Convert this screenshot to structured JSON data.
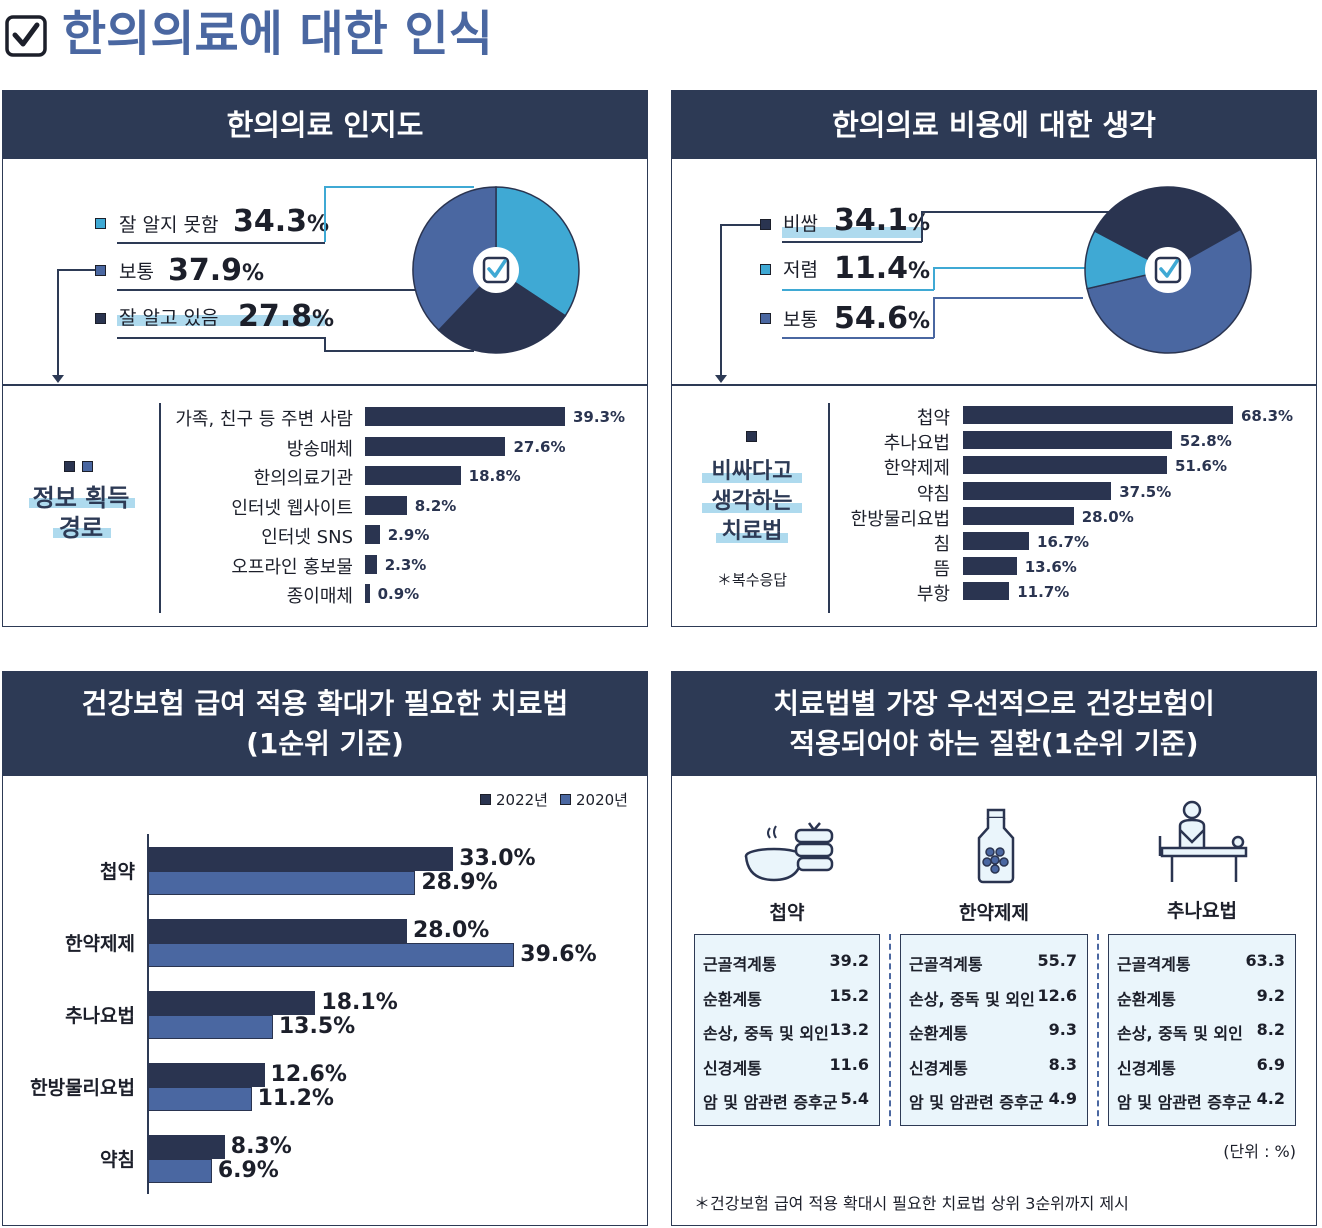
{
  "page": {
    "title": "한의의료에 대한 인식"
  },
  "panel1": {
    "title": "한의의료 인지도",
    "legend": [
      {
        "label": "잘 알지 못함",
        "value": "34.3",
        "unit": "%",
        "color": "#3fa9d4"
      },
      {
        "label": "보통",
        "value": "37.9",
        "unit": "%",
        "color": "#4a67a1"
      },
      {
        "label": "잘 알고 있음",
        "value": "27.8",
        "unit": "%",
        "color": "#2a3450"
      }
    ],
    "sub_title_line1": "정보 획득",
    "sub_title_line2": "경로"
  },
  "panel2": {
    "title": "한의의료 비용에 대한 생각",
    "legend": [
      {
        "label": "비쌈",
        "value": "34.1",
        "unit": "%",
        "color": "#2a3450"
      },
      {
        "label": "저렴",
        "value": "11.4",
        "unit": "%",
        "color": "#3fa9d4"
      },
      {
        "label": "보통",
        "value": "54.6",
        "unit": "%",
        "color": "#4a67a1"
      }
    ],
    "sub_title_line1": "비싸다고",
    "sub_title_line2": "생각하는",
    "sub_title_line3": "치료법",
    "sub_note": "＊복수응답"
  },
  "panel3": {
    "title_line1": "건강보험 급여 적용 확대가 필요한 치료법",
    "title_line2": "(1순위 기준)",
    "legend_2022": "2022년",
    "legend_2020": "2020년"
  },
  "panel4": {
    "title_line1": "치료법별 가장 우선적으로 건강보험이",
    "title_line2": "적용되어야 하는 질환(1순위 기준)",
    "unit_note": "(단위 : %)",
    "footnote": "＊건강보험 급여 적용 확대시 필요한 치료법 상위 3순위까지 제시",
    "columns": [
      {
        "name": "첩약",
        "icon": "herbal-bowl-icon",
        "rows": [
          [
            "근골격계통",
            "39.2"
          ],
          [
            "순환계통",
            "15.2"
          ],
          [
            "손상, 중독 및 외인",
            "13.2"
          ],
          [
            "신경계통",
            "11.6"
          ],
          [
            "암 및 암관련 증후군",
            "5.4"
          ]
        ]
      },
      {
        "name": "한약제제",
        "icon": "medicine-bottle-icon",
        "rows": [
          [
            "근골격계통",
            "55.7"
          ],
          [
            "손상, 중독 및 외인",
            "12.6"
          ],
          [
            "순환계통",
            "9.3"
          ],
          [
            "신경계통",
            "8.3"
          ],
          [
            "암 및 암관련 증후군",
            "4.9"
          ]
        ]
      },
      {
        "name": "추나요법",
        "icon": "chuna-therapy-icon",
        "rows": [
          [
            "근골격계통",
            "63.3"
          ],
          [
            "순환계통",
            "9.2"
          ],
          [
            "손상, 중독 및 외인",
            "8.2"
          ],
          [
            "신경계통",
            "6.9"
          ],
          [
            "암 및 암관련 증후군",
            "4.2"
          ]
        ]
      }
    ]
  },
  "colors": {
    "navy": "#2d3a55",
    "dark": "#2a3450",
    "mid": "#4a67a1",
    "light": "#3fa9d4",
    "highlight": "#aedaee"
  },
  "chart_data": [
    {
      "type": "pie",
      "title": "한의의료 인지도",
      "categories": [
        "잘 알지 못함",
        "보통",
        "잘 알고 있음"
      ],
      "values": [
        34.3,
        37.9,
        27.8
      ]
    },
    {
      "type": "bar",
      "title": "정보 획득 경로",
      "orientation": "horizontal",
      "categories": [
        "가족, 친구 등 주변 사람",
        "방송매체",
        "한의의료기관",
        "인터넷 웹사이트",
        "인터넷 SNS",
        "오프라인 홍보물",
        "종이매체"
      ],
      "values": [
        39.3,
        27.6,
        18.8,
        8.2,
        2.9,
        2.3,
        0.9
      ],
      "labels": [
        "39.3%",
        "27.6%",
        "18.8%",
        "8.2%",
        "2.9%",
        "2.3%",
        "0.9%"
      ],
      "xlim": [
        0,
        40
      ]
    },
    {
      "type": "pie",
      "title": "한의의료 비용에 대한 생각",
      "categories": [
        "비쌈",
        "저렴",
        "보통"
      ],
      "values": [
        34.1,
        11.4,
        54.6
      ]
    },
    {
      "type": "bar",
      "title": "비싸다고 생각하는 치료법",
      "orientation": "horizontal",
      "categories": [
        "첩약",
        "추나요법",
        "한약제제",
        "약침",
        "한방물리요법",
        "침",
        "뜸",
        "부항"
      ],
      "values": [
        68.3,
        52.8,
        51.6,
        37.5,
        28.0,
        16.7,
        13.6,
        11.7
      ],
      "labels": [
        "68.3%",
        "52.8%",
        "51.6%",
        "37.5%",
        "28.0%",
        "16.7%",
        "13.6%",
        "11.7%"
      ],
      "xlim": [
        0,
        70
      ]
    },
    {
      "type": "bar",
      "title": "건강보험 급여 적용 확대가 필요한 치료법 (1순위 기준)",
      "orientation": "horizontal",
      "categories": [
        "첩약",
        "한약제제",
        "추나요법",
        "한방물리요법",
        "약침"
      ],
      "series": [
        {
          "name": "2022년",
          "values": [
            33.0,
            28.0,
            18.1,
            12.6,
            8.3
          ],
          "labels": [
            "33.0%",
            "28.0%",
            "18.1%",
            "12.6%",
            "8.3%"
          ]
        },
        {
          "name": "2020년",
          "values": [
            28.9,
            39.6,
            13.5,
            11.2,
            6.9
          ],
          "labels": [
            "28.9%",
            "39.6%",
            "13.5%",
            "11.2%",
            "6.9%"
          ]
        }
      ],
      "xlim": [
        0,
        40
      ]
    }
  ]
}
